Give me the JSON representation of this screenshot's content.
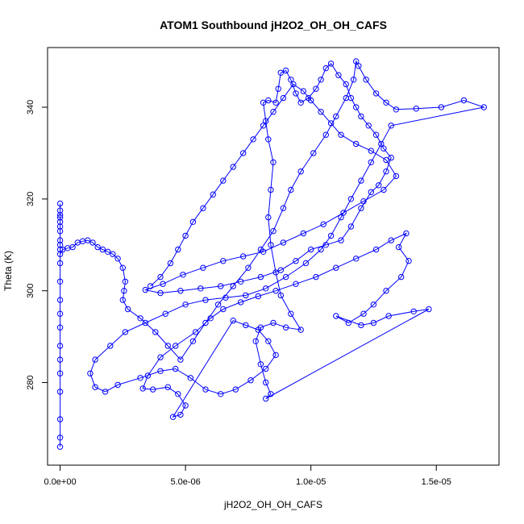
{
  "chart_data": {
    "type": "scatter",
    "title": "ATOM1 Southbound jH2O2_OH_OH_CAFS",
    "xlabel": "jH2O2_OH_OH_CAFS",
    "ylabel": "Theta (K)",
    "xlim": [
      -5e-07,
      1.75e-05
    ],
    "ylim": [
      262,
      353
    ],
    "x_ticks": [
      0,
      5e-06,
      1e-05,
      1.5e-05
    ],
    "x_tick_labels": [
      "0.0e+00",
      "5.0e-06",
      "1.0e-05",
      "1.5e-05"
    ],
    "y_ticks": [
      280,
      300,
      320,
      340
    ],
    "y_tick_labels": [
      "280",
      "300",
      "320",
      "340"
    ],
    "grid": false,
    "legend": "none",
    "colors": {
      "series": "#0000ff",
      "axis": "#000000"
    },
    "series": [
      {
        "marker": "open-circle",
        "lines": true,
        "points": [
          [
            0,
            266
          ],
          [
            0,
            268
          ],
          [
            0,
            272
          ],
          [
            0,
            278
          ],
          [
            0,
            282
          ],
          [
            0,
            285
          ],
          [
            0,
            288
          ],
          [
            0,
            292
          ],
          [
            0,
            295
          ],
          [
            0,
            298
          ],
          [
            0,
            302
          ],
          [
            0,
            306
          ],
          [
            0,
            309
          ],
          [
            0,
            311
          ],
          [
            0,
            313
          ],
          [
            0,
            315
          ],
          [
            0,
            316.5
          ],
          [
            0,
            317.5
          ],
          [
            0,
            319
          ],
          [
            0,
            316
          ],
          [
            0,
            314
          ],
          [
            0,
            310
          ],
          [
            0,
            308
          ],
          [
            1e-07,
            309
          ],
          [
            3e-07,
            309.3
          ],
          [
            5e-07,
            309.5
          ],
          [
            7e-07,
            310.5
          ],
          [
            9e-07,
            310.8
          ],
          [
            1.1e-06,
            311
          ],
          [
            1.3e-06,
            310.5
          ],
          [
            1.5e-06,
            309.5
          ],
          [
            1.7e-06,
            309
          ],
          [
            1.9e-06,
            308.5
          ],
          [
            2.1e-06,
            308
          ],
          [
            2.3e-06,
            307
          ],
          [
            2.5e-06,
            305
          ],
          [
            2.6e-06,
            302
          ],
          [
            2.55e-06,
            300
          ],
          [
            2.5e-06,
            298
          ],
          [
            2.7e-06,
            296
          ],
          [
            3.2e-06,
            294
          ],
          [
            3.8e-06,
            291
          ],
          [
            4.3e-06,
            288
          ],
          [
            4.8e-06,
            285
          ],
          [
            5.3e-06,
            289
          ],
          [
            5.8e-06,
            293
          ],
          [
            6.3e-06,
            297
          ],
          [
            6.9e-06,
            301
          ],
          [
            7.5e-06,
            305
          ],
          [
            8e-06,
            309
          ],
          [
            8.5e-06,
            313
          ],
          [
            8.9e-06,
            318
          ],
          [
            9.2e-06,
            322
          ],
          [
            9.6e-06,
            326
          ],
          [
            1.01e-05,
            330
          ],
          [
            1.06e-05,
            334
          ],
          [
            1.1e-05,
            338
          ],
          [
            1.14e-05,
            342
          ],
          [
            1.17e-05,
            346
          ],
          [
            1.18e-05,
            350
          ],
          [
            1.19e-05,
            349
          ],
          [
            1.22e-05,
            346
          ],
          [
            1.26e-05,
            343
          ],
          [
            1.3e-05,
            341
          ],
          [
            1.34e-05,
            339.5
          ],
          [
            1.42e-05,
            339.7
          ],
          [
            1.52e-05,
            340
          ],
          [
            1.61e-05,
            341.5
          ],
          [
            1.69e-05,
            340
          ],
          [
            1.32e-05,
            336
          ],
          [
            1.28e-05,
            332
          ],
          [
            1.24e-05,
            328
          ],
          [
            1.2e-05,
            324
          ],
          [
            1.16e-05,
            320
          ],
          [
            1.12e-05,
            316
          ],
          [
            1.08e-05,
            312
          ],
          [
            1.04e-05,
            309
          ],
          [
            9.8e-06,
            306
          ],
          [
            9e-06,
            303
          ],
          [
            8.2e-06,
            300.5
          ],
          [
            7.4e-06,
            299
          ],
          [
            6.6e-06,
            298.5
          ],
          [
            5.8e-06,
            298
          ],
          [
            5e-06,
            297
          ],
          [
            4.2e-06,
            295
          ],
          [
            3.4e-06,
            293
          ],
          [
            2.6e-06,
            291
          ],
          [
            2e-06,
            288
          ],
          [
            1.4e-06,
            285
          ],
          [
            1.2e-06,
            282
          ],
          [
            1.4e-06,
            279
          ],
          [
            1.8e-06,
            278
          ],
          [
            2.3e-06,
            279.5
          ],
          [
            3.2e-06,
            281
          ],
          [
            4e-06,
            282.5
          ],
          [
            4.6e-06,
            283
          ],
          [
            5.2e-06,
            281
          ],
          [
            5.8e-06,
            278.5
          ],
          [
            6.4e-06,
            277.5
          ],
          [
            7e-06,
            278.5
          ],
          [
            7.6e-06,
            280.5
          ],
          [
            8.2e-06,
            283
          ],
          [
            8.6e-06,
            286
          ],
          [
            8.3e-06,
            289
          ],
          [
            7.9e-06,
            291.5
          ],
          [
            7.4e-06,
            292.5
          ],
          [
            6.9e-06,
            293.5
          ],
          [
            4.5e-06,
            272.5
          ],
          [
            4.8e-06,
            273
          ],
          [
            5e-06,
            275
          ],
          [
            4.7e-06,
            277.5
          ],
          [
            4.3e-06,
            279
          ],
          [
            3.7e-06,
            278.5
          ],
          [
            3.3e-06,
            278.7
          ],
          [
            3.5e-06,
            281.5
          ],
          [
            4e-06,
            285.5
          ],
          [
            4.6e-06,
            288
          ],
          [
            5.4e-06,
            291
          ],
          [
            6e-06,
            294
          ],
          [
            6.5e-06,
            296
          ],
          [
            7.2e-06,
            297.5
          ],
          [
            7.9e-06,
            298.8
          ],
          [
            8.6e-06,
            300
          ],
          [
            9.4e-06,
            301.5
          ],
          [
            1.02e-05,
            303
          ],
          [
            1.1e-05,
            305
          ],
          [
            1.18e-05,
            307
          ],
          [
            1.26e-05,
            309
          ],
          [
            1.32e-05,
            311
          ],
          [
            1.38e-05,
            312.5
          ],
          [
            1.35e-05,
            309.5
          ],
          [
            1.39e-05,
            306.5
          ],
          [
            1.36e-05,
            303
          ],
          [
            1.3e-05,
            300
          ],
          [
            1.25e-05,
            297
          ],
          [
            1.21e-05,
            295
          ],
          [
            1.15e-05,
            293
          ],
          [
            1.1e-05,
            294.5
          ],
          [
            1.2e-05,
            292.5
          ],
          [
            1.25e-05,
            293
          ],
          [
            1.31e-05,
            294.5
          ],
          [
            1.41e-05,
            295.5
          ],
          [
            1.47e-05,
            296
          ],
          [
            8.2e-06,
            276.5
          ],
          [
            8.4e-06,
            277.5
          ],
          [
            8.2e-06,
            280
          ],
          [
            8e-06,
            284
          ],
          [
            7.8e-06,
            289
          ],
          [
            8e-06,
            292
          ],
          [
            8.5e-06,
            293
          ],
          [
            9e-06,
            292
          ],
          [
            9.6e-06,
            291.5
          ],
          [
            9.2e-06,
            295
          ],
          [
            8.8e-06,
            299
          ],
          [
            8.6e-06,
            304
          ],
          [
            8.4e-06,
            310
          ],
          [
            8.3e-06,
            316
          ],
          [
            8.4e-06,
            322
          ],
          [
            8.5e-06,
            328
          ],
          [
            8.3e-06,
            333
          ],
          [
            8.2e-06,
            337
          ],
          [
            8.1e-06,
            341
          ],
          [
            8.3e-06,
            341.5
          ],
          [
            8.6e-06,
            341
          ],
          [
            8.7e-06,
            344
          ],
          [
            8.8e-06,
            347.5
          ],
          [
            9e-06,
            348
          ],
          [
            9.2e-06,
            346
          ],
          [
            9.4e-06,
            343
          ],
          [
            9.6e-06,
            341
          ],
          [
            9.9e-06,
            342
          ],
          [
            1.02e-05,
            344
          ],
          [
            1.04e-05,
            346
          ],
          [
            1.06e-05,
            348.5
          ],
          [
            1.08e-05,
            349.5
          ],
          [
            1.11e-05,
            347
          ],
          [
            1.14e-05,
            345
          ],
          [
            1.16e-05,
            342
          ],
          [
            1.18e-05,
            340
          ],
          [
            1.2e-05,
            338
          ],
          [
            1.23e-05,
            336
          ],
          [
            1.26e-05,
            334
          ],
          [
            1.29e-05,
            331
          ],
          [
            1.32e-05,
            329
          ],
          [
            1.3e-05,
            326
          ],
          [
            1.27e-05,
            323
          ],
          [
            1.24e-05,
            321.5
          ],
          [
            1.2e-05,
            318
          ],
          [
            1.16e-05,
            314
          ],
          [
            1.12e-05,
            311
          ],
          [
            1.06e-05,
            310
          ],
          [
            1e-05,
            309
          ],
          [
            9.4e-06,
            306.5
          ],
          [
            8.8e-06,
            304.5
          ],
          [
            8e-06,
            303
          ],
          [
            7.2e-06,
            302
          ],
          [
            6.4e-06,
            301
          ],
          [
            5.6e-06,
            300.5
          ],
          [
            4.8e-06,
            300
          ],
          [
            4e-06,
            299.5
          ],
          [
            3.4e-06,
            300.2
          ],
          [
            4.1e-06,
            301.5
          ],
          [
            4.9e-06,
            303.5
          ],
          [
            5.7e-06,
            305
          ],
          [
            6.5e-06,
            306.5
          ],
          [
            7.3e-06,
            307.5
          ],
          [
            8.1e-06,
            308.5
          ],
          [
            8.9e-06,
            310.5
          ],
          [
            9.7e-06,
            312.5
          ],
          [
            1.05e-05,
            314.5
          ],
          [
            1.13e-05,
            317
          ],
          [
            1.21e-05,
            319.5
          ],
          [
            1.29e-05,
            322
          ],
          [
            1.34e-05,
            325
          ],
          [
            1.3e-05,
            328.5
          ],
          [
            1.24e-05,
            330.5
          ],
          [
            1.18e-05,
            332
          ],
          [
            1.12e-05,
            334
          ],
          [
            1.08e-05,
            336.5
          ],
          [
            1.04e-05,
            339
          ],
          [
            1e-05,
            341.5
          ],
          [
            9.7e-06,
            343.5
          ],
          [
            9.3e-06,
            345
          ],
          [
            8.9e-06,
            342
          ],
          [
            8.5e-06,
            339
          ],
          [
            8.1e-06,
            336
          ],
          [
            7.7e-06,
            333
          ],
          [
            7.3e-06,
            330
          ],
          [
            6.9e-06,
            327
          ],
          [
            6.5e-06,
            324
          ],
          [
            6.1e-06,
            321
          ],
          [
            5.7e-06,
            318
          ],
          [
            5.3e-06,
            315
          ],
          [
            5e-06,
            312
          ],
          [
            4.7e-06,
            309
          ],
          [
            4.4e-06,
            306
          ],
          [
            4e-06,
            303
          ],
          [
            3.6e-06,
            301
          ]
        ]
      }
    ]
  }
}
